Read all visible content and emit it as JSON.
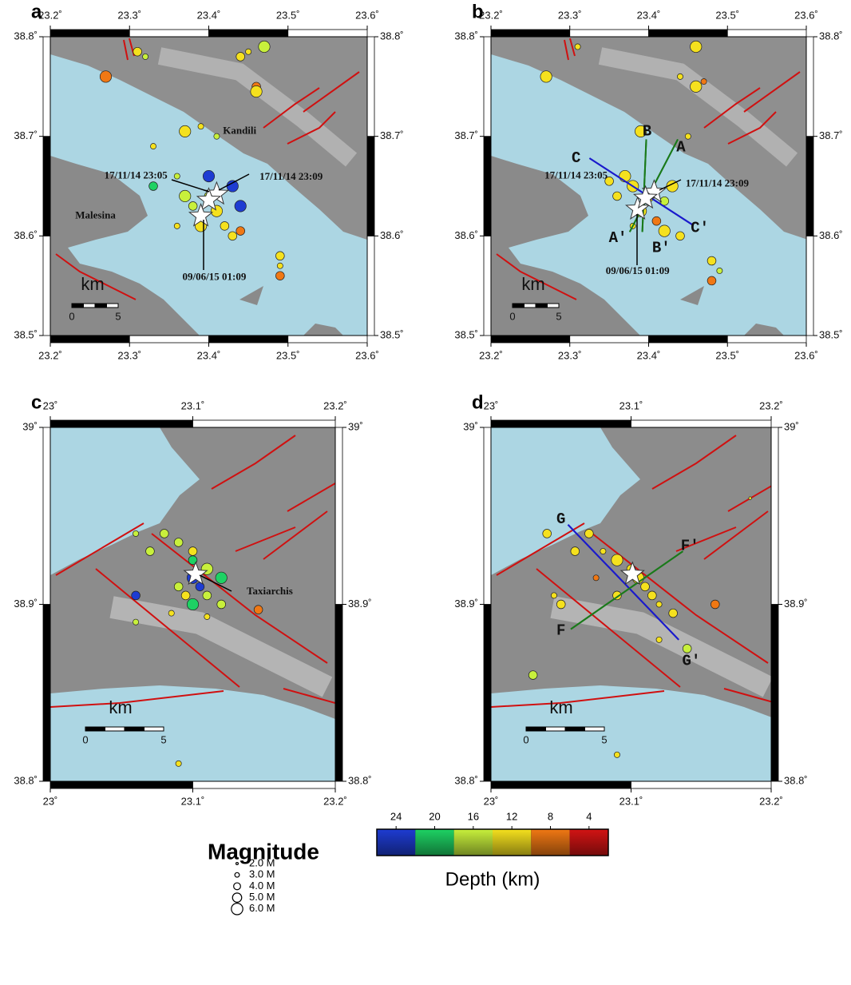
{
  "maps": [
    {
      "panel": "a",
      "xlim": [
        23.2,
        23.6
      ],
      "ylim": [
        38.5,
        38.8
      ],
      "xticks": [
        {
          "value": 23.2,
          "label": "23.2˚"
        },
        {
          "value": 23.3,
          "label": "23.3˚"
        },
        {
          "value": 23.4,
          "label": "23.4˚"
        },
        {
          "value": 23.5,
          "label": "23.5˚"
        },
        {
          "value": 23.6,
          "label": "23.6˚"
        }
      ],
      "yticks": [
        {
          "value": 38.5,
          "label": "38.5˚"
        },
        {
          "value": 38.6,
          "label": "38.6˚"
        },
        {
          "value": 38.7,
          "label": "38.7˚"
        },
        {
          "value": 38.8,
          "label": "38.8˚"
        }
      ],
      "events": [
        [
          23.27,
          38.76,
          8,
          5
        ],
        [
          23.31,
          38.785,
          14,
          4
        ],
        [
          23.32,
          38.78,
          16,
          3
        ],
        [
          23.45,
          38.785,
          13,
          3
        ],
        [
          23.47,
          38.79,
          16,
          5
        ],
        [
          23.44,
          38.78,
          12,
          4
        ],
        [
          23.46,
          38.75,
          8,
          4
        ],
        [
          23.46,
          38.745,
          12,
          5
        ],
        [
          23.39,
          38.71,
          14,
          3
        ],
        [
          23.33,
          38.69,
          13,
          3
        ],
        [
          23.37,
          38.705,
          14,
          5
        ],
        [
          23.41,
          38.7,
          16,
          3
        ],
        [
          23.36,
          38.66,
          15,
          3
        ],
        [
          23.33,
          38.65,
          19,
          4
        ],
        [
          23.4,
          38.66,
          24,
          5
        ],
        [
          23.43,
          38.65,
          25,
          5
        ],
        [
          23.44,
          38.63,
          23,
          5
        ],
        [
          23.4,
          38.64,
          17,
          4
        ],
        [
          23.37,
          38.64,
          15,
          5
        ],
        [
          23.38,
          38.63,
          16,
          4
        ],
        [
          23.41,
          38.625,
          12,
          5
        ],
        [
          23.39,
          38.61,
          14,
          5
        ],
        [
          23.42,
          38.61,
          11,
          4
        ],
        [
          23.44,
          38.605,
          9,
          4
        ],
        [
          23.36,
          38.61,
          13,
          3
        ],
        [
          23.43,
          38.6,
          14,
          4
        ],
        [
          23.49,
          38.58,
          13,
          4
        ],
        [
          23.49,
          38.57,
          14,
          3
        ],
        [
          23.49,
          38.56,
          8,
          4
        ]
      ],
      "stars": [
        [
          23.41,
          38.642
        ],
        [
          23.4,
          38.636
        ],
        [
          23.39,
          38.62
        ]
      ],
      "labels": [
        {
          "text": "Kandili",
          "lon": 23.439,
          "lat": 38.705
        },
        {
          "text": "17/11/14 23:05",
          "lon": 23.308,
          "lat": 38.66
        },
        {
          "text": "17/11/14 23:09",
          "lon": 23.504,
          "lat": 38.659
        },
        {
          "text": "Malesina",
          "lon": 23.257,
          "lat": 38.62
        },
        {
          "text": "09/06/15 01:09",
          "lon": 23.407,
          "lat": 38.558
        }
      ],
      "sections": [],
      "scale": {
        "unit": "km",
        "ticks": [
          "0",
          "5"
        ]
      }
    },
    {
      "panel": "b",
      "xlim": [
        23.2,
        23.6
      ],
      "ylim": [
        38.5,
        38.8
      ],
      "xticks": [
        {
          "value": 23.2,
          "label": "23.2˚"
        },
        {
          "value": 23.3,
          "label": "23.3˚"
        },
        {
          "value": 23.4,
          "label": "23.4˚"
        },
        {
          "value": 23.5,
          "label": "23.5˚"
        },
        {
          "value": 23.6,
          "label": "23.6˚"
        }
      ],
      "yticks": [
        {
          "value": 38.5,
          "label": "38.5˚"
        },
        {
          "value": 38.6,
          "label": "38.6˚"
        },
        {
          "value": 38.7,
          "label": "38.7˚"
        },
        {
          "value": 38.8,
          "label": "38.8˚"
        }
      ],
      "events": [
        [
          23.27,
          38.76,
          12,
          5
        ],
        [
          23.31,
          38.79,
          14,
          3
        ],
        [
          23.46,
          38.79,
          14,
          5
        ],
        [
          23.44,
          38.76,
          13,
          3
        ],
        [
          23.46,
          38.75,
          12,
          5
        ],
        [
          23.47,
          38.755,
          8,
          3
        ],
        [
          23.39,
          38.705,
          13,
          5
        ],
        [
          23.45,
          38.7,
          14,
          3
        ],
        [
          23.37,
          38.66,
          13,
          5
        ],
        [
          23.35,
          38.655,
          14,
          4
        ],
        [
          23.38,
          38.65,
          12,
          5
        ],
        [
          23.4,
          38.64,
          14,
          5
        ],
        [
          23.36,
          38.64,
          13,
          4
        ],
        [
          23.42,
          38.635,
          16,
          4
        ],
        [
          23.43,
          38.65,
          13,
          5
        ],
        [
          23.39,
          38.625,
          12,
          5
        ],
        [
          23.41,
          38.615,
          10,
          4
        ],
        [
          23.42,
          38.605,
          14,
          5
        ],
        [
          23.44,
          38.6,
          13,
          4
        ],
        [
          23.38,
          38.61,
          14,
          3
        ],
        [
          23.48,
          38.575,
          12,
          4
        ],
        [
          23.49,
          38.565,
          15,
          3
        ],
        [
          23.48,
          38.555,
          8,
          4
        ]
      ],
      "stars": [
        [
          23.407,
          38.644
        ],
        [
          23.386,
          38.627
        ],
        [
          23.396,
          38.638
        ]
      ],
      "labels": [
        {
          "text": "17/11/14 23:05",
          "lon": 23.308,
          "lat": 38.66
        },
        {
          "text": "17/11/14 23:09",
          "lon": 23.487,
          "lat": 38.652
        },
        {
          "text": "09/06/15 01:09",
          "lon": 23.386,
          "lat": 38.564
        }
      ],
      "sections": [
        {
          "start": "A",
          "end": "A′",
          "from": [
            23.437,
            38.697
          ],
          "to": [
            23.376,
            38.604
          ],
          "start_at": [
            23.441,
            38.689
          ],
          "end_at": [
            23.361,
            38.598
          ],
          "color": "#1a7a1a"
        },
        {
          "start": "B",
          "end": "B′",
          "from": [
            23.397,
            38.697
          ],
          "to": [
            23.392,
            38.604
          ],
          "start_at": [
            23.398,
            38.705
          ],
          "end_at": [
            23.416,
            38.588
          ],
          "color": "#1a7a1a"
        },
        {
          "start": "C",
          "end": "C′",
          "from": [
            23.325,
            38.678
          ],
          "to": [
            23.456,
            38.611
          ],
          "start_at": [
            23.308,
            38.678
          ],
          "end_at": [
            23.465,
            38.608
          ],
          "color": "#1a1acc"
        }
      ],
      "scale": {
        "unit": "km",
        "ticks": [
          "0",
          "5"
        ]
      }
    },
    {
      "panel": "c",
      "xlim": [
        23,
        23.2
      ],
      "ylim": [
        38.8,
        39
      ],
      "xticks": [
        {
          "value": 23,
          "label": "23˚"
        },
        {
          "value": 23.1,
          "label": "23.1˚"
        },
        {
          "value": 23.2,
          "label": "23.2˚"
        }
      ],
      "yticks": [
        {
          "value": 38.8,
          "label": "38.8˚"
        },
        {
          "value": 38.9,
          "label": "38.9˚"
        },
        {
          "value": 39,
          "label": "39˚"
        }
      ],
      "events": [
        [
          23.08,
          38.94,
          17,
          4
        ],
        [
          23.07,
          38.93,
          18,
          4
        ],
        [
          23.09,
          38.935,
          16,
          4
        ],
        [
          23.1,
          38.93,
          13,
          4
        ],
        [
          23.1,
          38.925,
          20,
          4
        ],
        [
          23.11,
          38.92,
          18,
          5
        ],
        [
          23.12,
          38.915,
          19,
          5
        ],
        [
          23.1,
          38.915,
          25,
          5
        ],
        [
          23.105,
          38.91,
          24,
          4
        ],
        [
          23.09,
          38.91,
          17,
          4
        ],
        [
          23.095,
          38.905,
          14,
          4
        ],
        [
          23.11,
          38.905,
          15,
          4
        ],
        [
          23.1,
          38.9,
          19,
          5
        ],
        [
          23.12,
          38.9,
          15,
          4
        ],
        [
          23.085,
          38.895,
          14,
          3
        ],
        [
          23.11,
          38.893,
          13,
          3
        ],
        [
          23.06,
          38.905,
          24,
          4
        ],
        [
          23.06,
          38.89,
          16,
          3
        ],
        [
          23.146,
          38.897,
          8,
          4
        ],
        [
          23.09,
          38.81,
          13,
          3
        ],
        [
          23.06,
          38.94,
          16,
          3
        ]
      ],
      "stars": [
        [
          23.102,
          38.917
        ]
      ],
      "labels": [
        {
          "text": "Taxiarchis",
          "lon": 23.154,
          "lat": 38.907
        }
      ],
      "sections": [],
      "scale": {
        "unit": "km",
        "ticks": [
          "0",
          "5"
        ]
      }
    },
    {
      "panel": "d",
      "xlim": [
        23,
        23.2
      ],
      "ylim": [
        38.8,
        39
      ],
      "xticks": [
        {
          "value": 23,
          "label": "23˚"
        },
        {
          "value": 23.1,
          "label": "23.1˚"
        },
        {
          "value": 23.2,
          "label": "23.2˚"
        }
      ],
      "yticks": [
        {
          "value": 38.8,
          "label": "38.8˚"
        },
        {
          "value": 38.9,
          "label": "38.9˚"
        },
        {
          "value": 39,
          "label": "39˚"
        }
      ],
      "events": [
        [
          23.04,
          38.94,
          13,
          4
        ],
        [
          23.07,
          38.94,
          12,
          4
        ],
        [
          23.08,
          38.93,
          12,
          3
        ],
        [
          23.09,
          38.925,
          12,
          5
        ],
        [
          23.1,
          38.92,
          13,
          4
        ],
        [
          23.105,
          38.915,
          14,
          5
        ],
        [
          23.11,
          38.91,
          13,
          4
        ],
        [
          23.115,
          38.905,
          13,
          4
        ],
        [
          23.12,
          38.9,
          12,
          3
        ],
        [
          23.13,
          38.895,
          12,
          4
        ],
        [
          23.09,
          38.905,
          13,
          4
        ],
        [
          23.075,
          38.915,
          8,
          3
        ],
        [
          23.05,
          38.9,
          13,
          4
        ],
        [
          23.045,
          38.905,
          12,
          3
        ],
        [
          23.16,
          38.9,
          8,
          4
        ],
        [
          23.14,
          38.875,
          15,
          4
        ],
        [
          23.03,
          38.86,
          15,
          4
        ],
        [
          23.09,
          38.815,
          13,
          3
        ],
        [
          23.185,
          38.96,
          13,
          2
        ],
        [
          23.06,
          38.93,
          12,
          4
        ],
        [
          23.12,
          38.88,
          12,
          3
        ]
      ],
      "stars": [
        [
          23.101,
          38.917
        ]
      ],
      "labels": [],
      "sections": [
        {
          "start": "G",
          "end": "G′",
          "from": [
            23.055,
            38.945
          ],
          "to": [
            23.134,
            38.88
          ],
          "start_at": [
            23.05,
            38.948
          ],
          "end_at": [
            23.143,
            38.868
          ],
          "color": "#1a1acc"
        },
        {
          "start": "F",
          "end": "F′",
          "from": [
            23.057,
            38.886
          ],
          "to": [
            23.137,
            38.93
          ],
          "start_at": [
            23.05,
            38.885
          ],
          "end_at": [
            23.142,
            38.933
          ],
          "color": "#1a7a1a"
        }
      ],
      "scale": {
        "unit": "km",
        "ticks": [
          "0",
          "5"
        ]
      }
    }
  ],
  "legend": {
    "title": "Magnitude",
    "sizes": [
      {
        "mag": 2,
        "label": "2.0 M"
      },
      {
        "mag": 3,
        "label": "3.0 M"
      },
      {
        "mag": 4,
        "label": "4.0 M"
      },
      {
        "mag": 5,
        "label": "5.0 M"
      },
      {
        "mag": 6,
        "label": "6.0 M"
      }
    ]
  },
  "colorbar": {
    "title": "Depth (km)",
    "lim": [
      26,
      2
    ],
    "ticks": [
      24,
      20,
      16,
      12,
      8,
      4
    ],
    "colors": [
      "#1e3cd2",
      "#1ed264",
      "#c8f03c",
      "#f5e11e",
      "#f07814",
      "#d21414"
    ]
  }
}
